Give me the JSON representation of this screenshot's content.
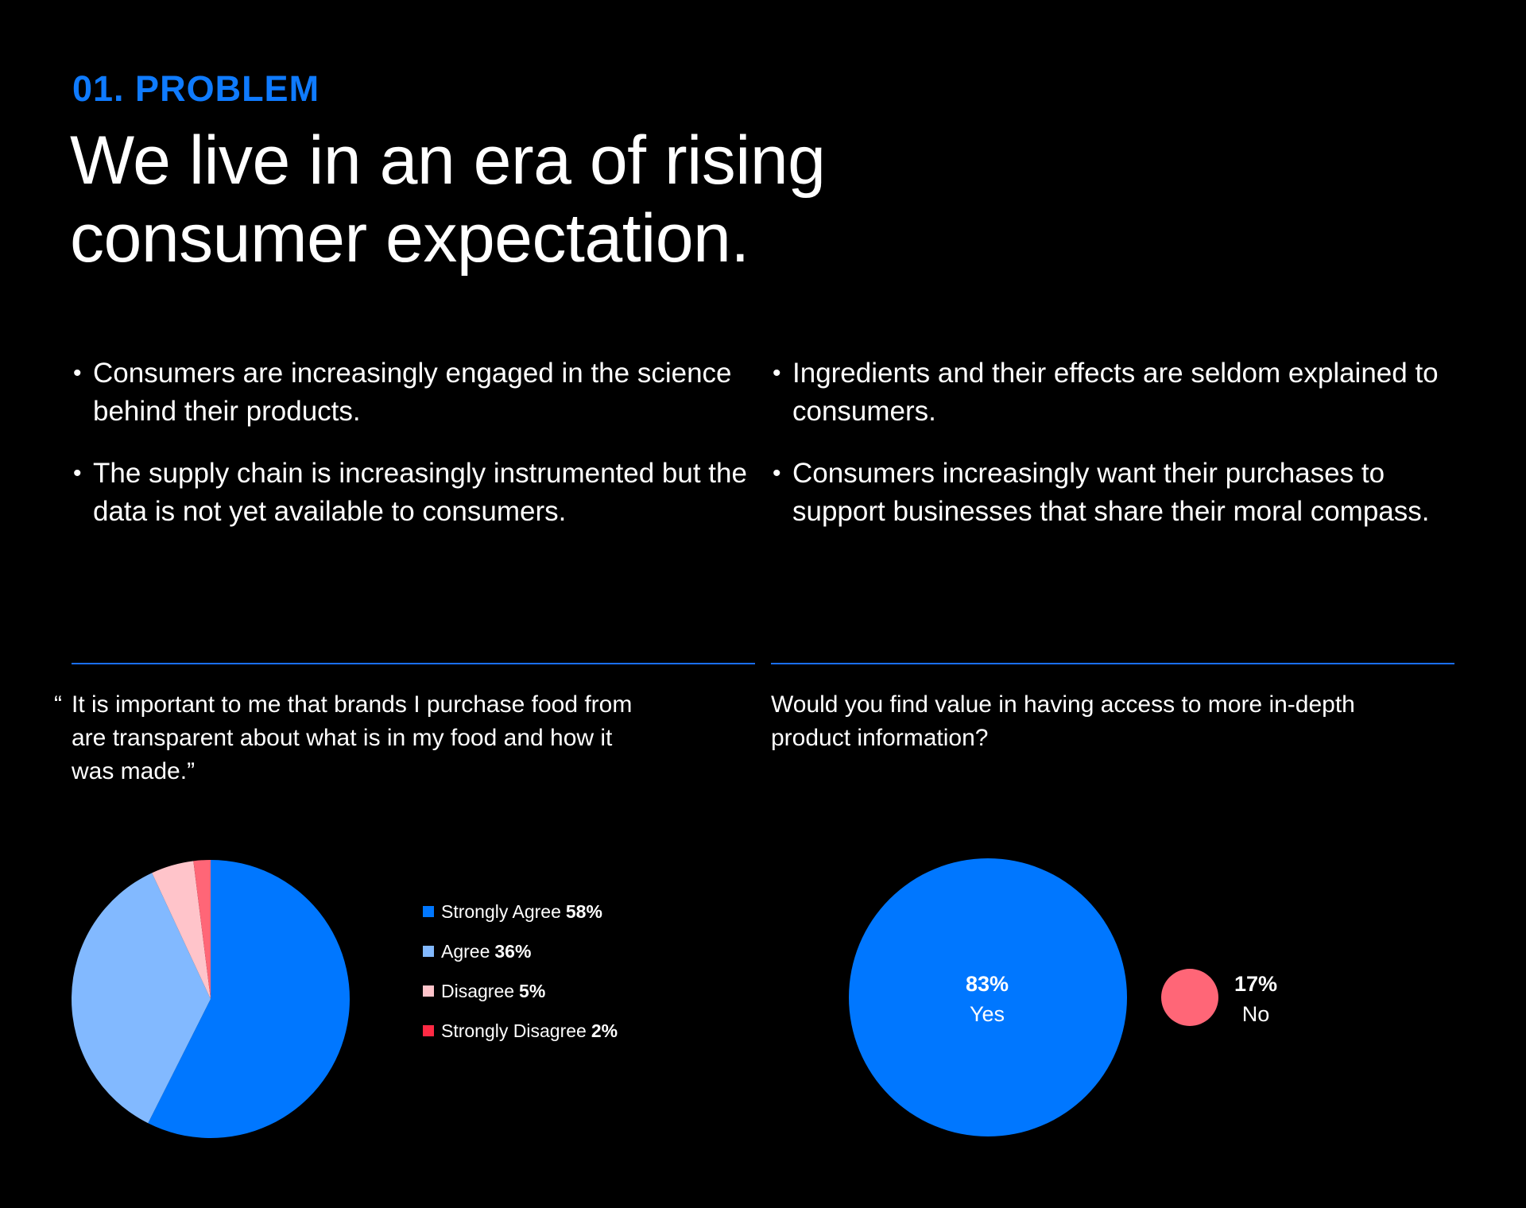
{
  "eyebrow": "01. PROBLEM",
  "headline": "We live in an era of rising consumer expectation.",
  "bullets_left": [
    "Consumers are increasingly engaged in the science behind their products.",
    "The supply chain is increasingly instrumented but the data is not yet available to consumers."
  ],
  "bullets_right": [
    "Ingredients and their effects are seldom explained to consumers.",
    "Consumers increasingly want their purchases to support businesses that share their moral compass."
  ],
  "bullet_glyph": "•",
  "colors": {
    "accent": "#0F7BFF",
    "divider": "#1A6FFF",
    "background": "#000000",
    "text": "#FFFFFF"
  },
  "quote": {
    "open_mark": "“",
    "text": "It is important to me that brands I purchase food from are transparent about what is in my food and how it was made.”"
  },
  "question": "Would you find value in having access to more in-depth product information?",
  "chart_data": [
    {
      "type": "pie",
      "title": "It is important to me that brands I purchase food from are transparent about what is in my food and how it was made.",
      "categories": [
        "Strongly Agree",
        "Agree",
        "Disagree",
        "Strongly Disagree"
      ],
      "values": [
        58,
        36,
        5,
        2
      ],
      "value_labels": [
        "58%",
        "36%",
        "5%",
        "2%"
      ],
      "colors": [
        "#0077FF",
        "#82B9FF",
        "#FFC4CA",
        "#FF6677"
      ],
      "legend_colors": [
        "#0077FF",
        "#82B9FF",
        "#FFC4CA",
        "#FF2A44"
      ],
      "start": "top",
      "direction": "clockwise",
      "legend_position": "right"
    },
    {
      "type": "bubble",
      "title": "Would you find value in having access to more in-depth product information?",
      "categories": [
        "Yes",
        "No"
      ],
      "values": [
        83,
        17
      ],
      "value_labels": [
        "83%",
        "17%"
      ],
      "colors": [
        "#0077FF",
        "#FF6677"
      ]
    }
  ]
}
